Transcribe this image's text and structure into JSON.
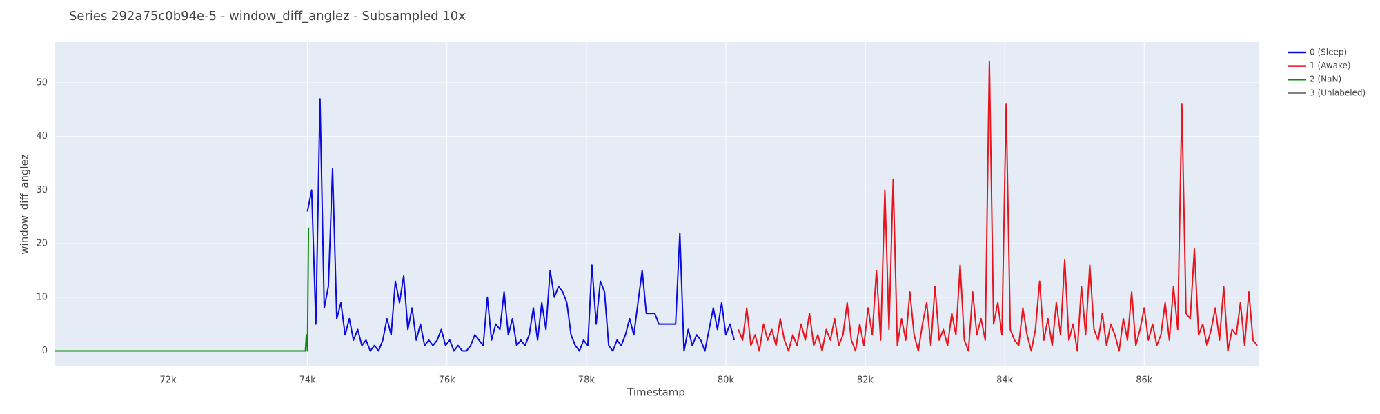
{
  "chart_data": {
    "type": "line",
    "title": "Series 292a75c0b94e-5 - window_diff_anglez - Subsampled 10x",
    "x_label": "Timestamp",
    "y_label": "window_diff_anglez",
    "xlim": [
      70372,
      87640
    ],
    "ylim": [
      -2.9,
      57.6
    ],
    "xticks": [
      {
        "value": 72000,
        "label": "72k"
      },
      {
        "value": 74000,
        "label": "74k"
      },
      {
        "value": 76000,
        "label": "76k"
      },
      {
        "value": 78000,
        "label": "78k"
      },
      {
        "value": 80000,
        "label": "80k"
      },
      {
        "value": 82000,
        "label": "82k"
      },
      {
        "value": 84000,
        "label": "84k"
      },
      {
        "value": 86000,
        "label": "86k"
      }
    ],
    "yticks": [
      0,
      10,
      20,
      30,
      40,
      50
    ],
    "grid": true,
    "legend": "outside-right",
    "series": [
      {
        "name": "0 (Sleep)",
        "color": "#0a0ae0",
        "x": [
          74000,
          74060,
          74120,
          74180,
          74240,
          74300,
          74360,
          74420,
          74480,
          74540,
          74600,
          74660,
          74720,
          74780,
          74840,
          74900,
          74960,
          75020,
          75080,
          75140,
          75200,
          75260,
          75320,
          75380,
          75440,
          75500,
          75560,
          75620,
          75680,
          75740,
          75800,
          75860,
          75920,
          75980,
          76040,
          76100,
          76160,
          76220,
          76280,
          76340,
          76400,
          76460,
          76520,
          76580,
          76640,
          76700,
          76760,
          76820,
          76880,
          76940,
          77000,
          77060,
          77120,
          77180,
          77240,
          77300,
          77360,
          77420,
          77480,
          77540,
          77600,
          77660,
          77720,
          77780,
          77840,
          77900,
          77960,
          78020,
          78080,
          78140,
          78200,
          78260,
          78320,
          78380,
          78440,
          78500,
          78560,
          78620,
          78680,
          78740,
          78800,
          78860,
          78920,
          78980,
          79040,
          79100,
          79160,
          79220,
          79280,
          79340,
          79400,
          79460,
          79520,
          79580,
          79640,
          79700,
          79760,
          79820,
          79880,
          79940,
          80000,
          80060,
          80120
        ],
        "values": [
          26,
          30,
          5,
          47,
          8,
          12,
          34,
          6,
          9,
          3,
          6,
          2,
          4,
          1,
          2,
          0,
          1,
          0,
          2,
          6,
          3,
          13,
          9,
          14,
          4,
          8,
          2,
          5,
          1,
          2,
          1,
          2,
          4,
          1,
          2,
          0,
          1,
          0,
          0,
          1,
          3,
          2,
          1,
          10,
          2,
          5,
          4,
          11,
          3,
          6,
          1,
          2,
          1,
          3,
          8,
          2,
          9,
          4,
          15,
          10,
          12,
          11,
          9,
          3,
          1,
          0,
          2,
          1,
          16,
          5,
          13,
          11,
          1,
          0,
          2,
          1,
          3,
          6,
          3,
          9,
          15,
          7,
          7,
          7,
          5,
          5,
          5,
          5,
          5,
          22,
          0,
          4,
          1,
          3,
          2,
          0,
          4,
          8,
          4,
          9,
          3,
          5,
          2
        ]
      },
      {
        "name": "1 (Awake)",
        "color": "#e8141c",
        "x": [
          80180,
          80240,
          80300,
          80360,
          80420,
          80480,
          80540,
          80600,
          80660,
          80720,
          80780,
          80840,
          80900,
          80960,
          81020,
          81080,
          81140,
          81200,
          81260,
          81320,
          81380,
          81440,
          81500,
          81560,
          81620,
          81680,
          81740,
          81800,
          81860,
          81920,
          81980,
          82040,
          82100,
          82160,
          82220,
          82280,
          82340,
          82400,
          82460,
          82520,
          82580,
          82640,
          82700,
          82760,
          82820,
          82880,
          82940,
          83000,
          83060,
          83120,
          83180,
          83240,
          83300,
          83360,
          83420,
          83480,
          83540,
          83600,
          83660,
          83720,
          83780,
          83840,
          83900,
          83960,
          84020,
          84080,
          84140,
          84200,
          84260,
          84320,
          84380,
          84440,
          84500,
          84560,
          84620,
          84680,
          84740,
          84800,
          84860,
          84920,
          84980,
          85040,
          85100,
          85160,
          85220,
          85280,
          85340,
          85400,
          85460,
          85520,
          85580,
          85640,
          85700,
          85760,
          85820,
          85880,
          85940,
          86000,
          86060,
          86120,
          86180,
          86240,
          86300,
          86360,
          86420,
          86480,
          86540,
          86600,
          86660,
          86720,
          86780,
          86840,
          86900,
          86960,
          87020,
          87080,
          87140,
          87200,
          87260,
          87320,
          87380,
          87440,
          87500,
          87560,
          87620
        ],
        "values": [
          4,
          2,
          8,
          1,
          3,
          0,
          5,
          2,
          4,
          1,
          6,
          2,
          0,
          3,
          1,
          5,
          2,
          7,
          1,
          3,
          0,
          4,
          2,
          6,
          1,
          3,
          9,
          2,
          0,
          5,
          1,
          8,
          3,
          15,
          2,
          30,
          4,
          32,
          1,
          6,
          2,
          11,
          3,
          0,
          5,
          9,
          1,
          12,
          2,
          4,
          1,
          7,
          3,
          16,
          2,
          0,
          11,
          3,
          6,
          2,
          54,
          5,
          9,
          3,
          46,
          4,
          2,
          1,
          8,
          3,
          0,
          4,
          13,
          2,
          6,
          1,
          9,
          3,
          17,
          2,
          5,
          0,
          12,
          3,
          16,
          4,
          2,
          7,
          1,
          5,
          3,
          0,
          6,
          2,
          11,
          1,
          4,
          8,
          2,
          5,
          1,
          3,
          9,
          2,
          12,
          4,
          46,
          7,
          6,
          19,
          3,
          5,
          1,
          4,
          8,
          2,
          12,
          0,
          4,
          3,
          9,
          1,
          11,
          2,
          1
        ]
      },
      {
        "name": "2 (NaN)",
        "color": "#0a8a0a",
        "x": [
          70372,
          73970,
          73985,
          74000,
          74015
        ],
        "values": [
          0,
          0,
          3,
          0,
          23
        ]
      },
      {
        "name": "3 (Unlabeled)",
        "color": "#808080",
        "x": [],
        "values": []
      }
    ]
  }
}
